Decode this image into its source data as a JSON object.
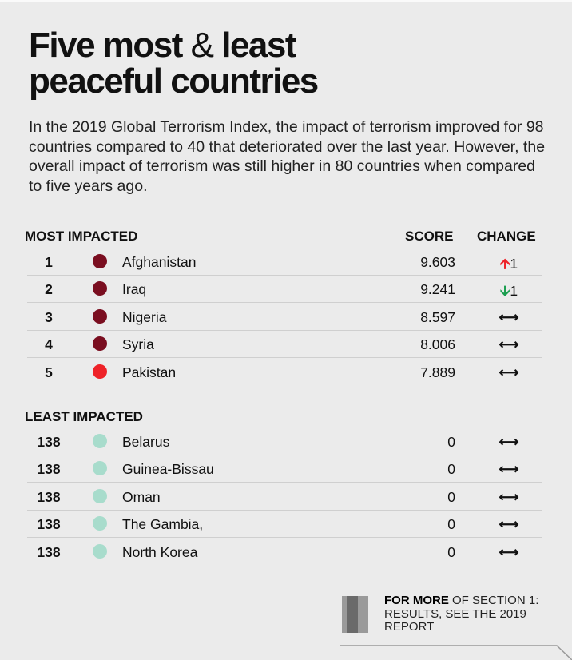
{
  "title": {
    "part1": "Five most",
    "amp": "&",
    "part2": "least",
    "line2": "peaceful countries"
  },
  "intro": "In the 2019 Global Terrorism Index, the impact of terrorism improved for 98 countries compared to 40 that deteriorated over the last year. However, the overall impact of terrorism was still higher in 80 countries when compared to five years ago.",
  "headers": {
    "most": "MOST IMPACTED",
    "least": "LEAST IMPACTED",
    "score": "SCORE",
    "change": "CHANGE"
  },
  "colors": {
    "dark_red": "#7a0e20",
    "red": "#ee2228",
    "mint": "#a8dccc",
    "up": "#ee2228",
    "down": "#1a9e4f"
  },
  "most": [
    {
      "rank": "1",
      "name": "Afghanistan",
      "score": "9.603",
      "change_icon": "arrow-up",
      "change": "1",
      "color": "#7a0e20"
    },
    {
      "rank": "2",
      "name": "Iraq",
      "score": "9.241",
      "change_icon": "arrow-down",
      "change": "1",
      "color": "#7a0e20"
    },
    {
      "rank": "3",
      "name": "Nigeria",
      "score": "8.597",
      "change_icon": "arrow-left-right",
      "change": "",
      "color": "#7a0e20"
    },
    {
      "rank": "4",
      "name": "Syria",
      "score": "8.006",
      "change_icon": "arrow-left-right",
      "change": "",
      "color": "#7a0e20"
    },
    {
      "rank": "5",
      "name": "Pakistan",
      "score": "7.889",
      "change_icon": "arrow-left-right",
      "change": "",
      "color": "#ee2228"
    }
  ],
  "least": [
    {
      "rank": "138",
      "name": "Belarus",
      "score": "0",
      "change_icon": "arrow-left-right",
      "color": "#a8dccc"
    },
    {
      "rank": "138",
      "name": "Guinea-Bissau",
      "score": "0",
      "change_icon": "arrow-left-right",
      "color": "#a8dccc"
    },
    {
      "rank": "138",
      "name": "Oman",
      "score": "0",
      "change_icon": "arrow-left-right",
      "color": "#a8dccc"
    },
    {
      "rank": "138",
      "name": "The Gambia,",
      "score": "0",
      "change_icon": "arrow-left-right",
      "color": "#a8dccc"
    },
    {
      "rank": "138",
      "name": "North Korea",
      "score": "0",
      "change_icon": "arrow-left-right",
      "color": "#a8dccc"
    }
  ],
  "footer": {
    "number": "1",
    "bold": "FOR MORE",
    "text": " OF SECTION 1: RESULTS, SEE THE 2019 REPORT"
  }
}
